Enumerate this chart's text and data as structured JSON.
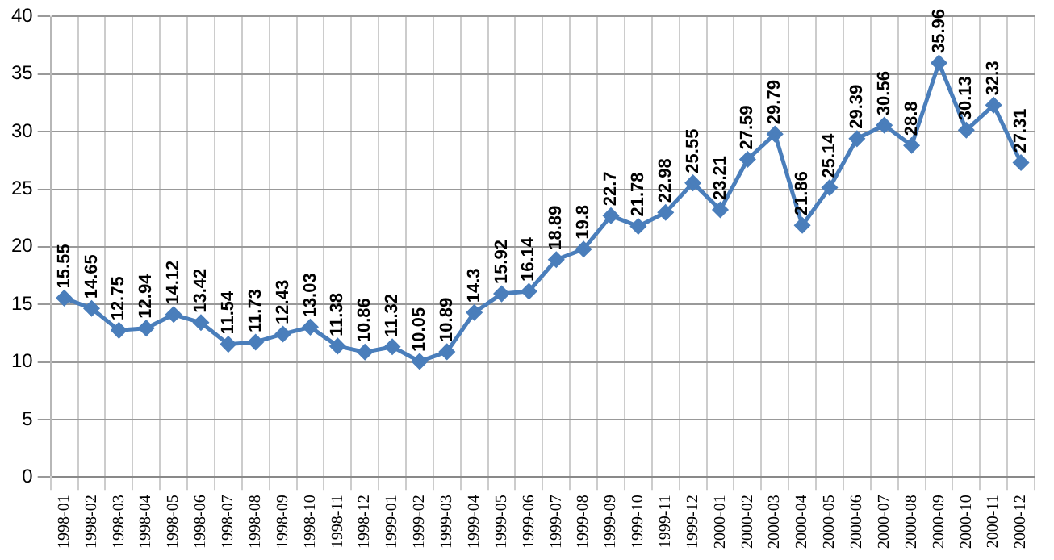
{
  "chart_data": {
    "type": "line",
    "categories": [
      "1998-01",
      "1998-02",
      "1998-03",
      "1998-04",
      "1998-05",
      "1998-06",
      "1998-07",
      "1998-08",
      "1998-09",
      "1998-10",
      "1998-11",
      "1998-12",
      "1999-01",
      "1999-02",
      "1999-03",
      "1999-04",
      "1999-05",
      "1999-06",
      "1999-07",
      "1999-08",
      "1999-09",
      "1999-10",
      "1999-11",
      "1999-12",
      "2000-01",
      "2000-02",
      "2000-03",
      "2000-04",
      "2000-05",
      "2000-06",
      "2000-07",
      "2000-08",
      "2000-09",
      "2000-10",
      "2000-11",
      "2000-12"
    ],
    "series": [
      {
        "color": "#4a7ebb",
        "values": [
          15.55,
          14.65,
          12.75,
          12.94,
          14.12,
          13.42,
          11.54,
          11.73,
          12.43,
          13.03,
          11.38,
          10.86,
          11.32,
          10.05,
          10.89,
          14.3,
          15.92,
          16.14,
          18.89,
          19.8,
          22.7,
          21.78,
          22.98,
          25.55,
          23.21,
          27.59,
          29.79,
          21.86,
          25.14,
          29.39,
          30.56,
          28.8,
          35.96,
          30.13,
          32.3,
          27.31
        ]
      }
    ],
    "ylim": [
      0,
      40
    ],
    "yticks": [
      0,
      5,
      10,
      15,
      20,
      25,
      30,
      35,
      40
    ],
    "grid": true,
    "marker": "diamond",
    "line_style": "solid",
    "data_labels": true,
    "legend": false
  }
}
